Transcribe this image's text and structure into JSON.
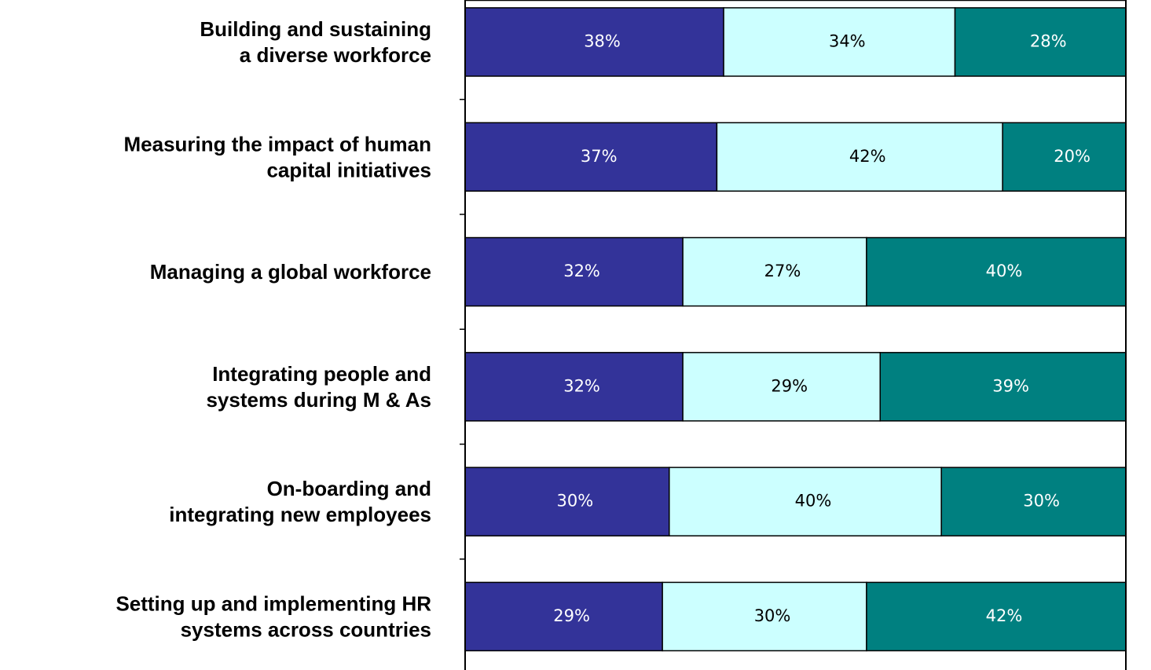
{
  "chart_data": {
    "type": "stacked_barh",
    "categories": [
      "Building and sustaining\na diverse workforce",
      "Measuring the impact of human\ncapital initiatives",
      "Managing a global workforce",
      "Integrating people and\nsystems during M & As",
      "On-boarding and\nintegrating new employees",
      "Setting up and implementing HR\nsystems across countries"
    ],
    "series": [
      {
        "color": "#333399",
        "label_color": "#ffffff",
        "values": [
          38,
          37,
          32,
          32,
          30,
          29
        ],
        "value_labels": [
          "38%",
          "37%",
          "32%",
          "32%",
          "30%",
          "29%"
        ]
      },
      {
        "color": "#ccffff",
        "label_color": "#000000",
        "values": [
          34,
          42,
          27,
          29,
          40,
          30
        ],
        "value_labels": [
          "34%",
          "42%",
          "27%",
          "29%",
          "40%",
          "30%"
        ]
      },
      {
        "color": "#008080",
        "label_color": "#ffffff",
        "values": [
          28,
          20,
          40,
          39,
          30,
          42
        ],
        "value_labels": [
          "28%",
          "20%",
          "40%",
          "39%",
          "30%",
          "42%"
        ]
      }
    ],
    "xlim": [
      0,
      100
    ]
  }
}
